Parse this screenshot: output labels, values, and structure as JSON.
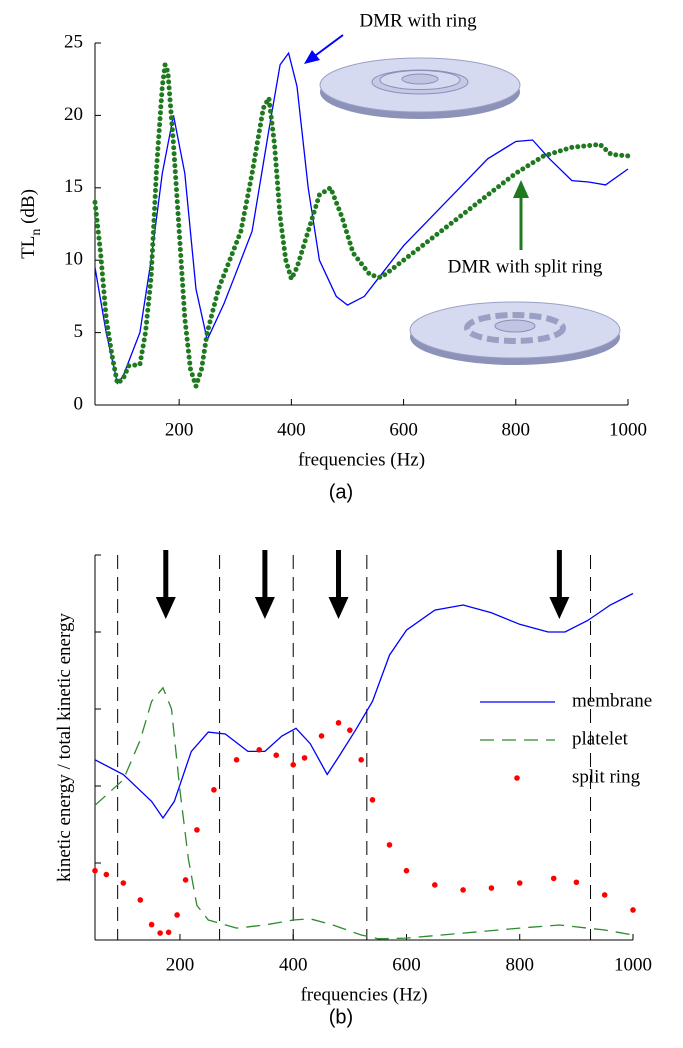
{
  "chart_data": [
    {
      "type": "line",
      "xlabel": "frequencies (Hz)",
      "ylabel": "TL",
      "ylabel_sub": "n",
      "ylabel_unit": "(dB)",
      "caption": "(a)",
      "xlim": [
        50,
        1000
      ],
      "xticks": [
        200,
        400,
        600,
        800,
        1000
      ],
      "ylim": [
        0,
        25
      ],
      "yticks": [
        0,
        5,
        10,
        15,
        20,
        25
      ],
      "ytick_labels": true,
      "series": [
        {
          "name": "DMR with ring",
          "color": "#0000ff",
          "style": "solid",
          "x": [
            50,
            70,
            90,
            100,
            130,
            150,
            170,
            190,
            210,
            230,
            250,
            280,
            300,
            330,
            360,
            380,
            395,
            410,
            430,
            450,
            480,
            500,
            530,
            560,
            600,
            650,
            700,
            750,
            800,
            830,
            860,
            900,
            930,
            960,
            1000
          ],
          "values": [
            9.5,
            5,
            1.5,
            2,
            5,
            10,
            16,
            20,
            16,
            8,
            4.5,
            7,
            9,
            12,
            19,
            23.5,
            24.3,
            22,
            15,
            10,
            7.5,
            6.9,
            7.5,
            9,
            11,
            13,
            15,
            17,
            18.2,
            18.3,
            17,
            15.5,
            15.4,
            15.2,
            16.3
          ]
        },
        {
          "name": "DMR with split ring",
          "color": "#1f7a1f",
          "style": "dotted",
          "x": [
            50,
            60,
            70,
            80,
            90,
            100,
            110,
            130,
            140,
            150,
            160,
            170,
            175,
            180,
            190,
            200,
            210,
            220,
            230,
            240,
            250,
            270,
            290,
            310,
            330,
            350,
            360,
            370,
            380,
            390,
            400,
            410,
            430,
            450,
            470,
            490,
            510,
            540,
            560,
            600,
            650,
            700,
            750,
            800,
            850,
            900,
            950,
            970,
            1000
          ],
          "values": [
            14,
            10.5,
            6,
            3.5,
            1.5,
            1.8,
            2.7,
            2.8,
            5,
            8.8,
            16.5,
            22,
            23.5,
            23,
            18,
            12,
            6,
            2.5,
            1.3,
            2.5,
            5,
            8,
            10,
            12,
            16,
            20.5,
            21.2,
            18,
            13,
            10,
            8.7,
            9.5,
            12,
            14.5,
            15,
            13,
            10.5,
            9,
            8.8,
            10,
            11.5,
            13,
            14.5,
            16,
            17.2,
            17.8,
            18,
            17.3,
            17.2
          ]
        }
      ]
    },
    {
      "type": "line",
      "xlabel": "frequencies (Hz)",
      "ylabel": "kinetic energy / total kinetic energy",
      "caption": "(b)",
      "xlim": [
        50,
        1000
      ],
      "xticks": [
        200,
        400,
        600,
        800,
        1000
      ],
      "ylim": [
        0,
        1
      ],
      "yticks": [
        0,
        0.2,
        0.4,
        0.6,
        0.8,
        1
      ],
      "ytick_labels": false,
      "vlines": [
        90,
        270,
        400,
        530,
        925
      ],
      "arrows": [
        175,
        350,
        480,
        870
      ],
      "legend": "right",
      "series": [
        {
          "name": "membrane",
          "color": "#0000ff",
          "style": "solid",
          "x": [
            50,
            100,
            150,
            170,
            190,
            220,
            250,
            280,
            320,
            350,
            380,
            405,
            430,
            460,
            480,
            510,
            540,
            570,
            600,
            650,
            700,
            750,
            800,
            850,
            880,
            920,
            960,
            1000
          ],
          "values": [
            0.468,
            0.43,
            0.36,
            0.317,
            0.36,
            0.49,
            0.54,
            0.535,
            0.49,
            0.49,
            0.53,
            0.55,
            0.51,
            0.43,
            0.475,
            0.545,
            0.62,
            0.74,
            0.805,
            0.857,
            0.87,
            0.85,
            0.82,
            0.8,
            0.8,
            0.83,
            0.87,
            0.9
          ]
        },
        {
          "name": "platelet",
          "color": "#2e8b2e",
          "style": "dashed",
          "x": [
            50,
            100,
            130,
            150,
            170,
            185,
            200,
            215,
            230,
            250,
            300,
            350,
            400,
            430,
            470,
            520,
            550,
            600,
            700,
            800,
            870,
            950,
            1000
          ],
          "values": [
            0.35,
            0.416,
            0.52,
            0.62,
            0.655,
            0.6,
            0.39,
            0.21,
            0.09,
            0.052,
            0.031,
            0.039,
            0.052,
            0.055,
            0.039,
            0.013,
            0.003,
            0.005,
            0.018,
            0.031,
            0.039,
            0.026,
            0.013
          ]
        },
        {
          "name": "split ring",
          "color": "#ff0000",
          "style": "dots",
          "x": [
            50,
            70,
            100,
            130,
            150,
            165,
            180,
            195,
            210,
            230,
            260,
            300,
            340,
            370,
            400,
            420,
            450,
            480,
            500,
            520,
            540,
            570,
            600,
            650,
            700,
            750,
            800,
            860,
            900,
            950,
            1000
          ],
          "values": [
            0.18,
            0.17,
            0.148,
            0.104,
            0.04,
            0.018,
            0.02,
            0.065,
            0.156,
            0.286,
            0.39,
            0.468,
            0.494,
            0.48,
            0.455,
            0.473,
            0.53,
            0.564,
            0.545,
            0.468,
            0.364,
            0.247,
            0.18,
            0.143,
            0.13,
            0.135,
            0.148,
            0.16,
            0.15,
            0.117,
            0.078
          ]
        }
      ]
    }
  ]
}
